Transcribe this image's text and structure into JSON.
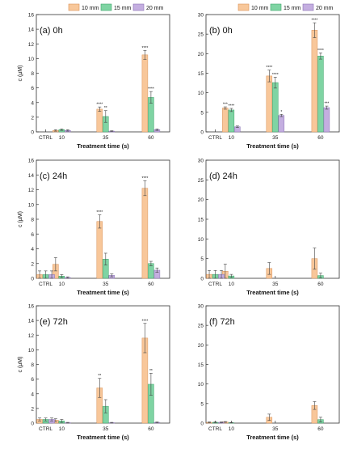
{
  "colors": {
    "10 mm": "#f8c79a",
    "15 mm": "#7fd4a3",
    "20 mm": "#c4aee0",
    "10 mm_stroke": "#d9935a",
    "15 mm_stroke": "#3fa36a",
    "20 mm_stroke": "#8a72b5"
  },
  "chart_data": [
    {
      "type": "bar",
      "panel_label": "(a) 0h",
      "xlabel": "Treatment time (s)",
      "ylabel": "c (µM)",
      "ylim": [
        0,
        16
      ],
      "yticks": [
        0,
        2,
        4,
        6,
        8,
        10,
        12,
        14,
        16
      ],
      "categories": [
        "CTRL",
        "10",
        "35",
        "60"
      ],
      "legend": [
        "10 mm",
        "15 mm",
        "20 mm"
      ],
      "series": [
        {
          "name": "10 mm",
          "values": [
            null,
            0.2,
            3.1,
            10.5
          ],
          "errors": [
            null,
            0.1,
            0.3,
            0.6
          ],
          "sig": [
            "",
            "",
            "****",
            "****"
          ]
        },
        {
          "name": "15 mm",
          "values": [
            null,
            0.3,
            2.1,
            4.7
          ],
          "errors": [
            null,
            0.1,
            0.8,
            0.8
          ],
          "sig": [
            "",
            "",
            "**",
            "****"
          ]
        },
        {
          "name": "20 mm",
          "values": [
            null,
            0.2,
            0.1,
            0.3
          ],
          "errors": [
            null,
            0.1,
            0.05,
            0.1
          ],
          "sig": [
            "",
            "",
            "",
            ""
          ]
        }
      ]
    },
    {
      "type": "bar",
      "panel_label": "(b) 0h",
      "xlabel": "Treatment time (s)",
      "ylabel": "",
      "ylim": [
        0,
        30
      ],
      "yticks": [
        0,
        5,
        10,
        15,
        20,
        25,
        30
      ],
      "categories": [
        "CTRL",
        "10",
        "35",
        "60"
      ],
      "legend": [
        "10 mm",
        "15 mm",
        "20 mm"
      ],
      "series": [
        {
          "name": "10 mm",
          "values": [
            null,
            6.1,
            14.3,
            26.0
          ],
          "errors": [
            null,
            0.3,
            1.5,
            1.9
          ],
          "sig": [
            "",
            "***",
            "****",
            "****"
          ]
        },
        {
          "name": "15 mm",
          "values": [
            null,
            5.6,
            12.6,
            19.4
          ],
          "errors": [
            null,
            0.4,
            1.4,
            0.8
          ],
          "sig": [
            "",
            "****",
            "****",
            "****"
          ]
        },
        {
          "name": "20 mm",
          "values": [
            null,
            1.3,
            4.2,
            6.2
          ],
          "errors": [
            null,
            0.2,
            0.3,
            0.4
          ],
          "sig": [
            "",
            "",
            "*",
            "***"
          ]
        }
      ]
    },
    {
      "type": "bar",
      "panel_label": "(c) 24h",
      "xlabel": "Treatment time (s)",
      "ylabel": "c (µM)",
      "ylim": [
        0,
        16
      ],
      "yticks": [
        0,
        2,
        4,
        6,
        8,
        10,
        12,
        14,
        16
      ],
      "categories": [
        "CTRL",
        "10",
        "35",
        "60"
      ],
      "series": [
        {
          "name": "10 mm",
          "values": [
            0.5,
            1.9,
            7.7,
            12.2
          ],
          "errors": [
            0.5,
            0.9,
            0.9,
            1.0
          ],
          "sig": [
            "",
            "",
            "****",
            "****"
          ]
        },
        {
          "name": "15 mm",
          "values": [
            0.5,
            0.3,
            2.6,
            2.0
          ],
          "errors": [
            0.5,
            0.2,
            0.8,
            0.3
          ],
          "sig": [
            "",
            "",
            "",
            ""
          ]
        },
        {
          "name": "20 mm",
          "values": [
            0.5,
            0.1,
            0.4,
            1.1
          ],
          "errors": [
            0.5,
            0.1,
            0.2,
            0.3
          ],
          "sig": [
            "",
            "",
            "",
            ""
          ]
        }
      ]
    },
    {
      "type": "bar",
      "panel_label": "(d) 24h",
      "xlabel": "Treatment time (s)",
      "ylabel": "",
      "ylim": [
        0,
        30
      ],
      "yticks": [
        0,
        5,
        10,
        15,
        20,
        25,
        30
      ],
      "categories": [
        "CTRL",
        "10",
        "35",
        "60"
      ],
      "series": [
        {
          "name": "10 mm",
          "values": [
            1.0,
            1.8,
            2.5,
            5.0
          ],
          "errors": [
            1.0,
            1.8,
            1.5,
            2.7
          ],
          "sig": [
            "",
            "",
            "",
            ""
          ]
        },
        {
          "name": "15 mm",
          "values": [
            1.0,
            0.6,
            null,
            0.7
          ],
          "errors": [
            1.0,
            0.4,
            null,
            0.6
          ],
          "sig": [
            "",
            "",
            "",
            ""
          ]
        },
        {
          "name": "20 mm",
          "values": [
            1.0,
            null,
            null,
            null
          ],
          "errors": [
            1.0,
            null,
            null,
            null
          ],
          "sig": [
            "",
            "",
            "",
            ""
          ]
        }
      ]
    },
    {
      "type": "bar",
      "panel_label": "(e) 72h",
      "xlabel": "Treatment time (s)",
      "ylabel": "c (µM)",
      "ylim": [
        0,
        16
      ],
      "yticks": [
        0,
        2,
        4,
        6,
        8,
        10,
        12,
        14,
        16
      ],
      "categories": [
        "CTRL",
        "10",
        "35",
        "60"
      ],
      "series": [
        {
          "name": "10 mm",
          "values": [
            0.5,
            0.4,
            4.8,
            11.6
          ],
          "errors": [
            0.2,
            0.2,
            1.3,
            2.0
          ],
          "sig": [
            "",
            "",
            "**",
            "****"
          ]
        },
        {
          "name": "15 mm",
          "values": [
            0.5,
            0.3,
            2.3,
            5.3
          ],
          "errors": [
            0.2,
            0.2,
            0.9,
            1.5
          ],
          "sig": [
            "",
            "",
            "",
            "**"
          ]
        },
        {
          "name": "20 mm",
          "values": [
            0.5,
            0.05,
            0.05,
            0.1
          ],
          "errors": [
            0.2,
            0.05,
            0.05,
            0.05
          ],
          "sig": [
            "",
            "",
            "",
            ""
          ]
        }
      ]
    },
    {
      "type": "bar",
      "panel_label": "(f) 72h",
      "xlabel": "Treatment time (s)",
      "ylabel": "",
      "ylim": [
        0,
        30
      ],
      "yticks": [
        0,
        5,
        10,
        15,
        20,
        25,
        30
      ],
      "categories": [
        "CTRL",
        "10",
        "35",
        "60"
      ],
      "series": [
        {
          "name": "10 mm",
          "values": [
            0.2,
            0.3,
            1.5,
            4.5
          ],
          "errors": [
            0.1,
            0.1,
            0.8,
            1.0
          ],
          "sig": [
            "",
            "",
            "",
            ""
          ]
        },
        {
          "name": "15 mm",
          "values": [
            0.2,
            0.1,
            null,
            0.9
          ],
          "errors": [
            0.1,
            0.05,
            null,
            0.6
          ],
          "sig": [
            "",
            "",
            "",
            ""
          ]
        },
        {
          "name": "20 mm",
          "values": [
            0.2,
            null,
            null,
            null
          ],
          "errors": [
            0.1,
            null,
            null,
            null
          ],
          "sig": [
            "",
            "",
            "",
            ""
          ]
        }
      ]
    }
  ]
}
